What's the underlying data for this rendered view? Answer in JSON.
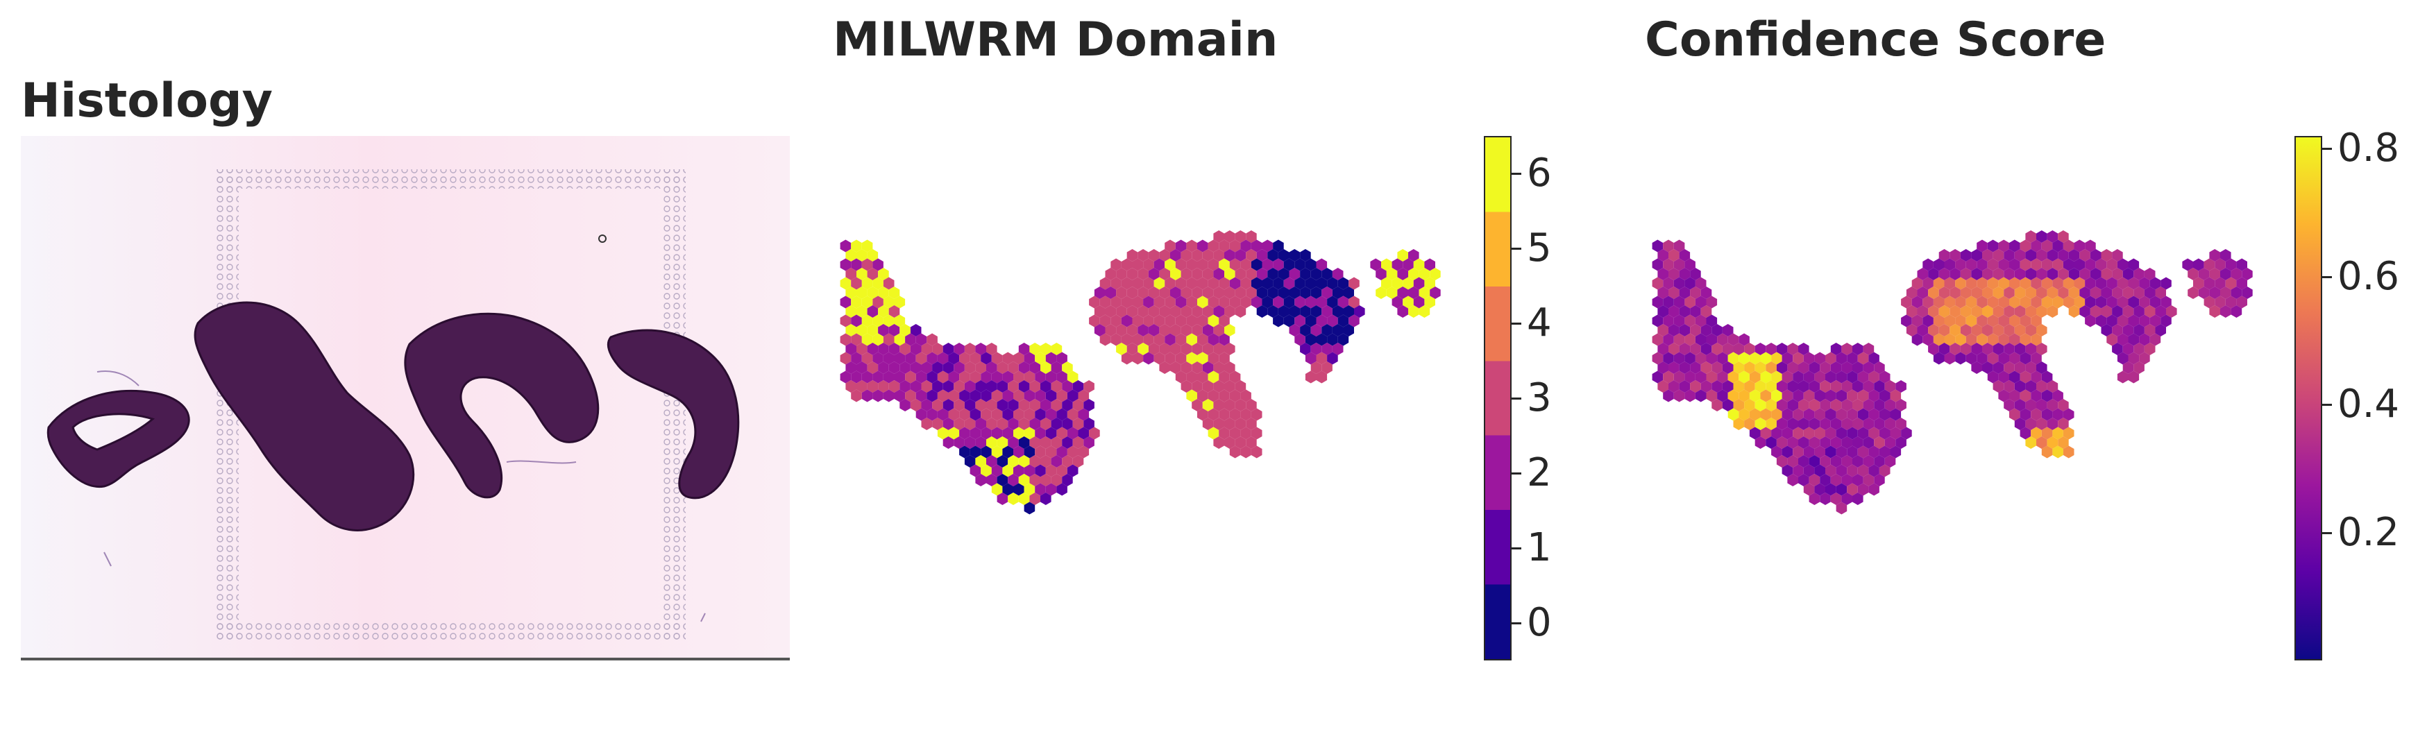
{
  "titles": {
    "histology": "Histology",
    "domain": "MILWRM Domain",
    "confidence": "Confidence Score"
  },
  "domain_colorbar": {
    "ticks": [
      "0",
      "1",
      "2",
      "3",
      "4",
      "5",
      "6"
    ],
    "colors": [
      "#0d0887",
      "#5c01a6",
      "#9c179e",
      "#cc4778",
      "#ed7953",
      "#fdb42f",
      "#f0f921"
    ]
  },
  "confidence_colorbar": {
    "ticks": [
      "0.2",
      "0.4",
      "0.6",
      "0.8"
    ],
    "tick_values": [
      0.2,
      0.4,
      0.6,
      0.8
    ],
    "range": [
      0.0,
      0.82
    ],
    "colormap": [
      "#0d0887",
      "#5c01a6",
      "#9c179e",
      "#cc4778",
      "#ed7953",
      "#fdb42f",
      "#f0f921"
    ]
  },
  "colors": {
    "tissue_dark": "#3b1640",
    "tissue_mid": "#6a2a6e",
    "slide_pink": "#fbe6f0",
    "spot_gray": "#b8aac4"
  }
}
